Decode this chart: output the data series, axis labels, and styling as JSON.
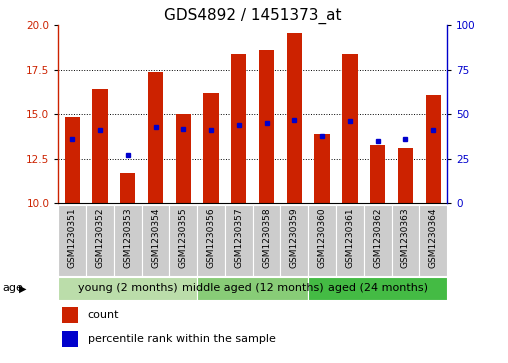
{
  "title": "GDS4892 / 1451373_at",
  "samples": [
    "GSM1230351",
    "GSM1230352",
    "GSM1230353",
    "GSM1230354",
    "GSM1230355",
    "GSM1230356",
    "GSM1230357",
    "GSM1230358",
    "GSM1230359",
    "GSM1230360",
    "GSM1230361",
    "GSM1230362",
    "GSM1230363",
    "GSM1230364"
  ],
  "count_values": [
    14.85,
    16.4,
    11.7,
    17.4,
    15.0,
    16.2,
    18.4,
    18.6,
    19.6,
    13.9,
    18.4,
    13.3,
    13.1,
    16.1
  ],
  "percentile_values": [
    36,
    41,
    27,
    43,
    42,
    41,
    44,
    45,
    47,
    38,
    46,
    35,
    36,
    41
  ],
  "ymin": 10,
  "ymax": 20,
  "yticks_left": [
    10,
    12.5,
    15,
    17.5,
    20
  ],
  "yticks_right": [
    0,
    25,
    50,
    75,
    100
  ],
  "bar_color": "#cc2200",
  "dot_color": "#0000cc",
  "groups": [
    {
      "label": "young (2 months)",
      "start": 0,
      "end": 5,
      "color": "#bbddaa"
    },
    {
      "label": "middle aged (12 months)",
      "start": 5,
      "end": 9,
      "color": "#88cc77"
    },
    {
      "label": "aged (24 months)",
      "start": 9,
      "end": 14,
      "color": "#44bb44"
    }
  ],
  "age_label": "age",
  "legend_count_label": "count",
  "legend_percentile_label": "percentile rank within the sample",
  "grid_yticks": [
    12.5,
    15,
    17.5
  ],
  "title_fontsize": 11,
  "tick_fontsize": 7.5,
  "xlabel_fontsize": 6.5,
  "legend_fontsize": 8,
  "group_fontsize": 8
}
